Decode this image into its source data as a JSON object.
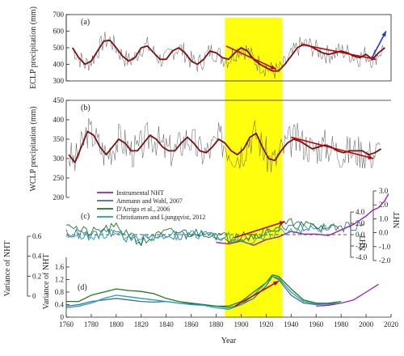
{
  "chart_data": {
    "type": "line",
    "x_range": [
      1760,
      2020
    ],
    "x_ticks": [
      1760,
      1780,
      1800,
      1820,
      1840,
      1860,
      1880,
      1900,
      1920,
      1940,
      1960,
      1980,
      2000,
      2020
    ],
    "xlabel": "Year",
    "highlight": {
      "from": 1887,
      "to": 1933,
      "color": "#ffff00"
    },
    "panels": [
      {
        "id": "a",
        "letter": "(a)",
        "ylabel": "ECLP precipitation (mm)",
        "ylim": [
          300,
          700
        ],
        "y_ticks": [
          300,
          400,
          500,
          600,
          700
        ],
        "smooth": {
          "name": "smoothed",
          "color": "#7a1010",
          "x": [
            1765,
            1770,
            1775,
            1780,
            1785,
            1790,
            1795,
            1800,
            1805,
            1810,
            1815,
            1820,
            1825,
            1830,
            1835,
            1840,
            1845,
            1850,
            1855,
            1860,
            1865,
            1870,
            1875,
            1880,
            1885,
            1890,
            1895,
            1900,
            1905,
            1910,
            1915,
            1920,
            1925,
            1930,
            1935,
            1940,
            1945,
            1950,
            1955,
            1960,
            1965,
            1970,
            1975,
            1980,
            1985,
            1990,
            1995,
            2000,
            2005,
            2010,
            2015
          ],
          "y": [
            500,
            440,
            400,
            420,
            480,
            540,
            545,
            500,
            450,
            420,
            440,
            500,
            510,
            470,
            430,
            430,
            480,
            500,
            470,
            420,
            400,
            430,
            480,
            470,
            440,
            430,
            470,
            500,
            480,
            430,
            400,
            380,
            360,
            360,
            400,
            450,
            500,
            520,
            510,
            490,
            470,
            460,
            470,
            480,
            470,
            450,
            440,
            460,
            430,
            470,
            500
          ]
        },
        "trends": [
          {
            "x": [
              1888,
              1928
            ],
            "y": [
              510,
              370
            ],
            "color": "#c00000"
          },
          {
            "x": [
              1948,
              2008
            ],
            "y": [
              520,
              430
            ],
            "color": "#c00000"
          },
          {
            "x": [
              2004,
              2016
            ],
            "y": [
              430,
              600
            ],
            "color": "#1f3fbf"
          }
        ]
      },
      {
        "id": "b",
        "letter": "(b)",
        "ylabel": "WCLP precipitation (mm)",
        "ylim": [
          200,
          450
        ],
        "y_ticks": [
          200,
          250,
          300,
          350,
          400,
          450
        ],
        "smooth": {
          "name": "smoothed",
          "color": "#7a1010",
          "x": [
            1762,
            1767,
            1772,
            1777,
            1782,
            1787,
            1792,
            1797,
            1802,
            1807,
            1812,
            1817,
            1822,
            1827,
            1832,
            1837,
            1842,
            1847,
            1852,
            1857,
            1862,
            1867,
            1872,
            1877,
            1882,
            1887,
            1892,
            1897,
            1902,
            1907,
            1912,
            1917,
            1922,
            1927,
            1932,
            1937,
            1942,
            1947,
            1952,
            1957,
            1962,
            1967,
            1972,
            1977,
            1982,
            1987,
            1992,
            1997,
            2002,
            2007,
            2012
          ],
          "y": [
            310,
            290,
            330,
            370,
            360,
            330,
            310,
            330,
            350,
            340,
            320,
            320,
            340,
            360,
            350,
            330,
            320,
            320,
            340,
            355,
            340,
            320,
            315,
            330,
            350,
            340,
            320,
            310,
            325,
            355,
            365,
            330,
            300,
            295,
            320,
            340,
            350,
            345,
            335,
            325,
            330,
            335,
            330,
            320,
            315,
            320,
            320,
            320,
            310,
            315,
            325
          ]
        },
        "trends": [
          {
            "x": [
              1940,
              2006
            ],
            "y": [
              355,
              300
            ],
            "color": "#c00000"
          }
        ]
      },
      {
        "id": "c",
        "letter": "(c)",
        "ylabel": "NHT",
        "ylim": [
          -4.0,
          4.0
        ],
        "y_ticks": [
          -4.0,
          -2.0,
          0.0,
          2.0,
          4.0
        ],
        "right_ylabel": "NHT",
        "right_ylim": [
          -2.0,
          3.0
        ],
        "right_ticks": [
          -2.0,
          -1.0,
          0.0,
          1.0,
          2.0,
          3.0
        ],
        "series": [
          {
            "name": "Instrumental NHT",
            "color": "#a020a0",
            "axis": "right",
            "x": [
              1880,
              1890,
              1900,
              1910,
              1920,
              1930,
              1940,
              1950,
              1960,
              1970,
              1980,
              1990,
              2000,
              2005,
              2010,
              2015,
              2018
            ],
            "y": [
              -0.7,
              -0.8,
              -0.6,
              -0.9,
              -0.5,
              -0.3,
              0.1,
              -0.1,
              -0.1,
              -0.2,
              0.2,
              0.6,
              1.2,
              1.6,
              1.8,
              2.3,
              2.8
            ]
          },
          {
            "name": "Ammann and Wahl, 2007",
            "color": "#3a6ea5",
            "axis": "left",
            "x": [
              1760,
              1770,
              1780,
              1790,
              1800,
              1810,
              1820,
              1830,
              1840,
              1850,
              1860,
              1870,
              1880,
              1890,
              1900,
              1910,
              1920,
              1930,
              1940,
              1950,
              1960,
              1970,
              1980,
              1990,
              2000
            ],
            "y": [
              0.3,
              0.1,
              -0.2,
              0.2,
              0.4,
              -0.8,
              -1.0,
              -0.3,
              0.0,
              -0.2,
              -0.2,
              0.0,
              -0.3,
              -0.6,
              -0.3,
              -0.5,
              0.5,
              1.2,
              1.8,
              1.4,
              1.2,
              1.0,
              1.3,
              1.6,
              1.9
            ]
          },
          {
            "name": "D'Arrigo et al., 2006",
            "color": "#1f7a1f",
            "axis": "left",
            "x": [
              1760,
              1770,
              1780,
              1790,
              1800,
              1810,
              1820,
              1830,
              1840,
              1850,
              1860,
              1870,
              1880,
              1890,
              1900,
              1910,
              1920,
              1930,
              1940,
              1950,
              1960,
              1970,
              1980
            ],
            "y": [
              2.5,
              0.8,
              0.3,
              0.9,
              1.2,
              0.2,
              -1.5,
              -0.5,
              0.3,
              0.5,
              0.2,
              0.4,
              0.0,
              -0.6,
              -0.4,
              -0.2,
              0.8,
              1.5,
              2.0,
              1.6,
              1.4,
              1.2,
              1.7
            ]
          },
          {
            "name": "Christiansen and Ljungqvist, 2012",
            "color": "#20a0b0",
            "axis": "left",
            "x": [
              1760,
              1770,
              1780,
              1790,
              1800,
              1810,
              1820,
              1830,
              1840,
              1850,
              1860,
              1870,
              1880,
              1890,
              1900,
              1910,
              1920,
              1930,
              1940,
              1950,
              1960,
              1970
            ],
            "y": [
              0.1,
              -0.1,
              -0.2,
              0.2,
              0.3,
              -0.5,
              -0.8,
              -0.5,
              -0.2,
              -0.1,
              -0.1,
              0.2,
              -0.1,
              -0.4,
              -0.6,
              -1.6,
              -0.4,
              0.6,
              1.0,
              1.1,
              1.2,
              1.4
            ]
          }
        ],
        "trends": [
          {
            "x": [
              1895,
              1935
            ],
            "y": [
              -0.5,
              2.3
            ],
            "color": "#c00000"
          }
        ]
      },
      {
        "id": "d",
        "letter": "(d)",
        "ylabel": "Variance of NHT",
        "ylim": [
          0,
          1.6
        ],
        "y_ticks": [
          0,
          0.4,
          0.8,
          1.2,
          1.6
        ],
        "right_ylabel": "Variance of NHT",
        "right_ticks": [
          0,
          0.2,
          0.4,
          0.6
        ],
        "series": [
          {
            "name": "Instrumental NHT",
            "color": "#a020a0",
            "axis": "left",
            "x": [
              1960,
              1970,
              1980,
              1990,
              2000,
              2010
            ],
            "y": [
              0.35,
              0.38,
              0.45,
              0.55,
              0.8,
              1.05
            ]
          },
          {
            "name": "Ammann and Wahl, 2007",
            "color": "#3a6ea5",
            "axis": "left",
            "x": [
              1760,
              1770,
              1780,
              1790,
              1800,
              1810,
              1820,
              1830,
              1840,
              1850,
              1860,
              1870,
              1880,
              1890,
              1900,
              1910,
              1920,
              1925,
              1930,
              1940,
              1950,
              1960,
              1970,
              1980
            ],
            "y": [
              0.35,
              0.4,
              0.5,
              0.55,
              0.6,
              0.55,
              0.5,
              0.48,
              0.5,
              0.45,
              0.42,
              0.4,
              0.35,
              0.3,
              0.4,
              0.6,
              1.0,
              1.3,
              1.2,
              0.7,
              0.45,
              0.4,
              0.42,
              0.45
            ]
          },
          {
            "name": "D'Arrigo et al., 2006",
            "color": "#1f7a1f",
            "axis": "left",
            "x": [
              1760,
              1770,
              1780,
              1790,
              1800,
              1810,
              1820,
              1830,
              1840,
              1850,
              1860,
              1870,
              1880,
              1890,
              1900,
              1910,
              1920,
              1925,
              1930,
              1940,
              1950,
              1960,
              1970,
              1980
            ],
            "y": [
              0.5,
              0.5,
              0.7,
              0.8,
              0.9,
              0.85,
              0.82,
              0.75,
              0.6,
              0.5,
              0.45,
              0.4,
              0.35,
              0.35,
              0.5,
              0.8,
              1.1,
              1.35,
              1.3,
              0.9,
              0.55,
              0.45,
              0.45,
              0.5
            ]
          },
          {
            "name": "Christiansen and Ljungqvist, 2012",
            "color": "#20a0b0",
            "axis": "left",
            "x": [
              1760,
              1770,
              1780,
              1790,
              1800,
              1810,
              1820,
              1830,
              1840,
              1850,
              1860,
              1870,
              1880,
              1890,
              1900,
              1910,
              1920,
              1925,
              1930,
              1940,
              1950,
              1960,
              1970
            ],
            "y": [
              0.3,
              0.35,
              0.45,
              0.6,
              0.7,
              0.65,
              0.6,
              0.55,
              0.5,
              0.45,
              0.4,
              0.38,
              0.3,
              0.25,
              0.4,
              0.7,
              1.1,
              1.3,
              1.25,
              0.8,
              0.5,
              0.42,
              0.45
            ]
          }
        ],
        "trends": [
          {
            "x": [
              1895,
              1930
            ],
            "y": [
              0.35,
              1.15
            ],
            "color": "#c00000"
          }
        ]
      }
    ]
  }
}
